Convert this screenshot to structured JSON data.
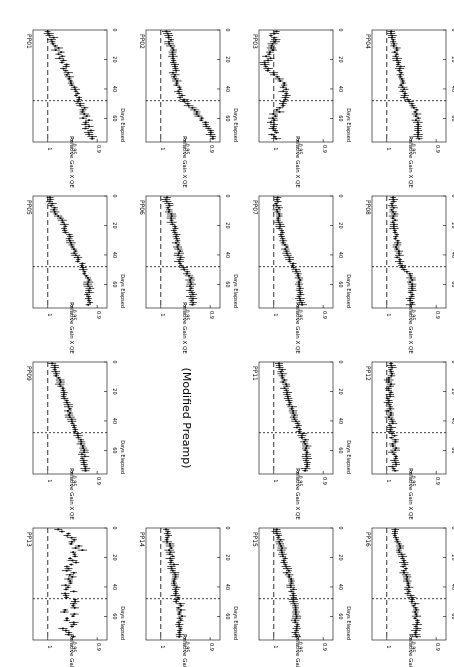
{
  "chart_data": {
    "type": "scatter",
    "layout": "4x4 grid of panels (page rotated 90 degrees)",
    "shared_axes": {
      "xlabel": "Days Elapsed",
      "ylabel": "Relative Gain X QE",
      "x_ticks": [
        0,
        20,
        40,
        60
      ],
      "y_ticks": [
        0.9,
        0.95,
        1
      ],
      "y_tick_labels": [
        "0.9",
        "0.95",
        "1"
      ],
      "xlim": [
        0,
        76
      ],
      "ylim": [
        0.88,
        1.03
      ],
      "reference_line_y": 1.0,
      "event_day": 48
    },
    "empty_panel_text": "(Modified Preamp)",
    "panels": [
      {
        "title": "PP01",
        "profile": [
          [
            0,
            1.0
          ],
          [
            20,
            0.97
          ],
          [
            45,
            0.94
          ],
          [
            58,
            0.925
          ],
          [
            70,
            0.915
          ]
        ],
        "noise": 0.006
      },
      {
        "title": "PP02",
        "profile": [
          [
            0,
            0.99
          ],
          [
            15,
            0.975
          ],
          [
            35,
            0.97
          ],
          [
            48,
            0.955
          ],
          [
            55,
            0.93
          ],
          [
            68,
            0.9
          ],
          [
            75,
            0.89
          ]
        ],
        "noise": 0.004
      },
      {
        "title": "PP03",
        "profile": [
          [
            0,
            1.0
          ],
          [
            10,
            1.0
          ],
          [
            25,
            1.02
          ],
          [
            33,
            0.985
          ],
          [
            48,
            0.975
          ],
          [
            58,
            1.0
          ],
          [
            75,
            1.0
          ]
        ],
        "noise": 0.006
      },
      {
        "title": "PP04",
        "profile": [
          [
            0,
            0.99
          ],
          [
            25,
            0.975
          ],
          [
            45,
            0.965
          ],
          [
            55,
            0.94
          ],
          [
            75,
            0.935
          ]
        ],
        "noise": 0.003
      },
      {
        "title": "PP05",
        "profile": [
          [
            0,
            1.0
          ],
          [
            25,
            0.96
          ],
          [
            45,
            0.935
          ],
          [
            55,
            0.92
          ],
          [
            75,
            0.915
          ]
        ],
        "noise": 0.004
      },
      {
        "title": "PP06",
        "profile": [
          [
            0,
            0.99
          ],
          [
            25,
            0.97
          ],
          [
            45,
            0.96
          ],
          [
            55,
            0.94
          ],
          [
            75,
            0.935
          ]
        ],
        "noise": 0.003
      },
      {
        "title": "PP07",
        "profile": [
          [
            0,
            0.995
          ],
          [
            25,
            0.985
          ],
          [
            45,
            0.965
          ],
          [
            55,
            0.95
          ],
          [
            75,
            0.945
          ]
        ],
        "noise": 0.003
      },
      {
        "title": "PP08",
        "profile": [
          [
            0,
            0.99
          ],
          [
            20,
            0.985
          ],
          [
            45,
            0.975
          ],
          [
            55,
            0.95
          ],
          [
            75,
            0.95
          ]
        ],
        "noise": 0.003
      },
      {
        "title": "PP09",
        "profile": [
          [
            0,
            0.99
          ],
          [
            25,
            0.965
          ],
          [
            45,
            0.945
          ],
          [
            55,
            0.93
          ],
          [
            75,
            0.925
          ]
        ],
        "noise": 0.003
      },
      {
        "title": "",
        "profile": [],
        "noise": 0
      },
      {
        "title": "PP11",
        "profile": [
          [
            0,
            0.99
          ],
          [
            25,
            0.97
          ],
          [
            45,
            0.95
          ],
          [
            55,
            0.935
          ],
          [
            75,
            0.935
          ]
        ],
        "noise": 0.003
      },
      {
        "title": "PP12",
        "profile": [
          [
            0,
            0.99
          ],
          [
            25,
            0.995
          ],
          [
            45,
            0.99
          ],
          [
            55,
            0.985
          ],
          [
            75,
            0.985
          ]
        ],
        "noise": 0.004
      },
      {
        "title": "PP13",
        "profile": [
          [
            0,
            0.97
          ],
          [
            15,
            0.94
          ],
          [
            30,
            0.955
          ],
          [
            45,
            0.955
          ],
          [
            75,
            0.96
          ]
        ],
        "noise": 0.012
      },
      {
        "title": "PP14",
        "profile": [
          [
            0,
            0.99
          ],
          [
            25,
            0.975
          ],
          [
            45,
            0.97
          ],
          [
            55,
            0.96
          ],
          [
            75,
            0.96
          ]
        ],
        "noise": 0.004
      },
      {
        "title": "PP15",
        "profile": [
          [
            0,
            0.995
          ],
          [
            25,
            0.975
          ],
          [
            45,
            0.96
          ],
          [
            55,
            0.955
          ],
          [
            75,
            0.955
          ]
        ],
        "noise": 0.003
      },
      {
        "title": "PP16",
        "profile": [
          [
            0,
            0.985
          ],
          [
            25,
            0.965
          ],
          [
            45,
            0.955
          ],
          [
            55,
            0.94
          ],
          [
            75,
            0.94
          ]
        ],
        "noise": 0.003
      }
    ]
  }
}
